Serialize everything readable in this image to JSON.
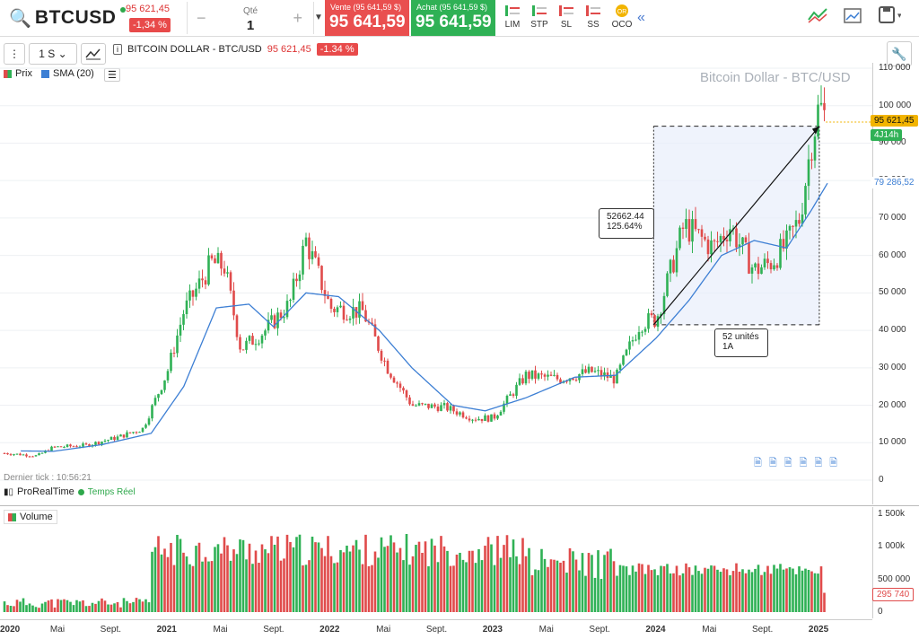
{
  "symbol": "BTCUSD",
  "header": {
    "last_price": "95 621,45",
    "change": "-1,34 %",
    "qty_label": "Qté",
    "qty_value": "1",
    "minus": "−",
    "plus": "+",
    "sell_label": "Vente (95 641,59 $)",
    "sell_value": "95 641,59",
    "buy_label": "Achat (95 641,59 $)",
    "buy_value": "95 641,59",
    "order_types": [
      "LIM",
      "STP",
      "SL",
      "SS",
      "OCO"
    ]
  },
  "toolbar": {
    "period": "1 S",
    "instrument": "BITCOIN DOLLAR - BTC/USD",
    "price": "95 621,45",
    "change": "-1.34 %"
  },
  "legend": {
    "price": "Prix",
    "sma": "SMA (20)",
    "volume": "Volume"
  },
  "chart_title": "Bitcoin Dollar - BTC/USD",
  "last_tick": "Dernier tick : 10:56:21",
  "provider": "ProRealTime",
  "realtime": "Temps Réel",
  "annotation_top": {
    "line1": "52662.44",
    "line2": "125.64%"
  },
  "annotation_bottom": {
    "line1": "52 unités",
    "line2": "1A"
  },
  "tags": {
    "price": "95 621,45",
    "countdown": "4J14h",
    "sma": "79 286,52",
    "volume": "295 740"
  },
  "colors": {
    "up": "#2fb155",
    "down": "#e04b4b",
    "sma": "#3d7fd4"
  },
  "chart_data": {
    "type": "candlestick",
    "title": "Bitcoin Dollar - BTC/USD",
    "price_axis": [
      "110 000",
      "100 000",
      "90 000",
      "80 000",
      "70 000",
      "60 000",
      "50 000",
      "40 000",
      "30 000",
      "20 000",
      "10 000",
      "0"
    ],
    "volume_axis": [
      "1 500k",
      "1 000k",
      "500 000",
      "0"
    ],
    "x_labels": [
      "2020",
      "Mai",
      "Sept.",
      "2021",
      "Mai",
      "Sept.",
      "2022",
      "Mai",
      "Sept.",
      "2023",
      "Mai",
      "Sept.",
      "2024",
      "Mai",
      "Sept.",
      "2025"
    ],
    "price_path": [
      [
        2020.0,
        7200
      ],
      [
        2020.2,
        6500
      ],
      [
        2020.3,
        8800
      ],
      [
        2020.5,
        9300
      ],
      [
        2020.7,
        11500
      ],
      [
        2020.85,
        13800
      ],
      [
        2021.0,
        29000
      ],
      [
        2021.1,
        45000
      ],
      [
        2021.27,
        58000
      ],
      [
        2021.35,
        57000
      ],
      [
        2021.45,
        35000
      ],
      [
        2021.6,
        40000
      ],
      [
        2021.75,
        47000
      ],
      [
        2021.85,
        64000
      ],
      [
        2022.0,
        46000
      ],
      [
        2022.2,
        45000
      ],
      [
        2022.35,
        30000
      ],
      [
        2022.5,
        20000
      ],
      [
        2022.7,
        19500
      ],
      [
        2022.88,
        16500
      ],
      [
        2023.0,
        16600
      ],
      [
        2023.2,
        28000
      ],
      [
        2023.4,
        27000
      ],
      [
        2023.6,
        29000
      ],
      [
        2023.75,
        27000
      ],
      [
        2023.9,
        42000
      ],
      [
        2024.0,
        43000
      ],
      [
        2024.17,
        68000
      ],
      [
        2024.35,
        62000
      ],
      [
        2024.45,
        68000
      ],
      [
        2024.6,
        56000
      ],
      [
        2024.7,
        58000
      ],
      [
        2024.8,
        63000
      ],
      [
        2024.88,
        70000
      ],
      [
        2024.95,
        90000
      ],
      [
        2025.0,
        100000
      ],
      [
        2025.05,
        95600
      ]
    ],
    "sma_path": [
      [
        2020.1,
        7800
      ],
      [
        2020.3,
        7700
      ],
      [
        2020.6,
        9500
      ],
      [
        2020.9,
        12500
      ],
      [
        2021.1,
        25000
      ],
      [
        2021.3,
        46000
      ],
      [
        2021.5,
        47000
      ],
      [
        2021.65,
        41000
      ],
      [
        2021.85,
        50000
      ],
      [
        2022.05,
        49000
      ],
      [
        2022.3,
        40000
      ],
      [
        2022.5,
        30000
      ],
      [
        2022.75,
        20000
      ],
      [
        2022.95,
        18500
      ],
      [
        2023.2,
        22000
      ],
      [
        2023.5,
        27500
      ],
      [
        2023.75,
        28000
      ],
      [
        2024.0,
        38000
      ],
      [
        2024.2,
        48000
      ],
      [
        2024.4,
        60000
      ],
      [
        2024.6,
        64000
      ],
      [
        2024.8,
        62000
      ],
      [
        2024.95,
        72000
      ],
      [
        2025.05,
        79286
      ]
    ]
  }
}
